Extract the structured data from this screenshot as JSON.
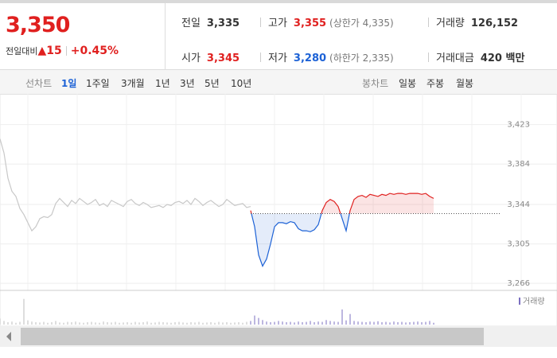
{
  "header": {
    "price": "3,350",
    "change_label": "전일대비",
    "change_mark": "▲",
    "change": "15",
    "change_pct": "+0.45%",
    "stats": [
      {
        "label": "전일",
        "value": "3,335"
      },
      {
        "label": "고가",
        "value": "3,355",
        "note": "(상한가 4,335)"
      },
      {
        "label": "거래량",
        "value": "126,152"
      },
      {
        "label": "시가",
        "value": "3,345"
      },
      {
        "label": "저가",
        "value": "3,280",
        "note": "(하한가 2,335)"
      },
      {
        "label": "거래대금",
        "value": "420 백만"
      }
    ]
  },
  "tabs": {
    "line_label": "선차트",
    "line": [
      "1일",
      "1주일",
      "3개월",
      "1년",
      "3년",
      "5년",
      "10년"
    ],
    "candle_label": "봉차트",
    "candle": [
      "일봉",
      "주봉",
      "월봉"
    ]
  },
  "chart_data": {
    "type": "line",
    "xlim": [
      0,
      126
    ],
    "ylim": [
      3259,
      3444
    ],
    "yticks": [
      {
        "value": 3423,
        "label": "3,423"
      },
      {
        "value": 3384,
        "label": "3,384"
      },
      {
        "value": 3344,
        "label": "3,344"
      },
      {
        "value": 3305,
        "label": "3,305"
      },
      {
        "value": 3266,
        "label": "3,266"
      }
    ],
    "baseline": 3335,
    "grid": true,
    "series": [
      {
        "color": "#c8c8c8",
        "values": [
          3409,
          3395,
          3370,
          3357,
          3352,
          3340,
          3334,
          3326,
          3318,
          3322,
          3330,
          3332,
          3331,
          3334,
          3345,
          3350,
          3346,
          3342,
          3348,
          3345,
          3350,
          3347,
          3344,
          3346,
          3349,
          3343,
          3345,
          3342,
          3348,
          3346,
          3344,
          3342,
          3347,
          3349,
          3345,
          3343,
          3346,
          3344,
          3341,
          3342,
          3343,
          3341,
          3344,
          3343,
          3346,
          3347,
          3345,
          3348,
          3344,
          3350,
          3347,
          3343,
          3346,
          3348,
          3345,
          3342,
          3344,
          3349,
          3346,
          3343,
          3344,
          3345,
          3341,
          3342,
          null,
          null,
          null,
          null,
          null,
          null,
          null,
          null,
          null,
          null,
          null,
          null,
          null,
          null,
          null,
          null,
          null,
          null,
          null,
          null,
          null,
          null,
          null,
          null,
          null,
          null,
          null,
          null,
          null,
          null,
          null,
          null,
          null,
          null,
          null,
          null,
          null,
          null,
          null,
          null,
          null,
          null,
          null,
          null,
          null,
          null
        ]
      },
      {
        "color_up": "#e0201f",
        "color_down": "#1d62d6",
        "values": [
          null,
          null,
          null,
          null,
          null,
          null,
          null,
          null,
          null,
          null,
          null,
          null,
          null,
          null,
          null,
          null,
          null,
          null,
          null,
          null,
          null,
          null,
          null,
          null,
          null,
          null,
          null,
          null,
          null,
          null,
          null,
          null,
          null,
          null,
          null,
          null,
          null,
          null,
          null,
          null,
          null,
          null,
          null,
          null,
          null,
          null,
          null,
          null,
          null,
          null,
          null,
          null,
          null,
          null,
          null,
          null,
          null,
          null,
          null,
          null,
          null,
          null,
          null,
          3338,
          3322,
          3294,
          3283,
          3290,
          3305,
          3322,
          3326,
          3326,
          3325,
          3327,
          3326,
          3320,
          3318,
          3318,
          3317,
          3319,
          3324,
          3338,
          3346,
          3349,
          3347,
          3342,
          3330,
          3318,
          3338,
          3349,
          3352,
          3353,
          3351,
          3354,
          3353,
          3352,
          3354,
          3353,
          3355,
          3354,
          3355,
          3355,
          3354,
          3355,
          3355,
          3355,
          3354,
          3355,
          3352,
          3350
        ]
      }
    ],
    "volume": {
      "name": "거래량",
      "color": "#7b6fc0",
      "color_prev": "#bdbdbd",
      "vlim": [
        0,
        100
      ],
      "values": [
        20,
        12,
        8,
        10,
        6,
        9,
        85,
        14,
        10,
        8,
        7,
        9,
        6,
        8,
        12,
        7,
        6,
        9,
        8,
        10,
        7,
        6,
        8,
        9,
        7,
        6,
        10,
        8,
        7,
        9,
        6,
        7,
        8,
        6,
        9,
        7,
        8,
        10,
        6,
        7,
        9,
        8,
        7,
        6,
        8,
        9,
        7,
        6,
        8,
        7,
        9,
        6,
        7,
        8,
        6,
        9,
        7,
        8,
        6,
        7,
        8,
        6,
        9,
        12,
        30,
        22,
        15,
        10,
        8,
        9,
        12,
        10,
        8,
        9,
        7,
        10,
        8,
        9,
        12,
        8,
        10,
        9,
        15,
        12,
        10,
        9,
        50,
        14,
        35,
        12,
        10,
        9,
        8,
        10,
        9,
        11,
        8,
        9,
        7,
        10,
        8,
        9,
        7,
        8,
        9,
        10,
        8,
        9,
        12,
        6
      ]
    }
  }
}
